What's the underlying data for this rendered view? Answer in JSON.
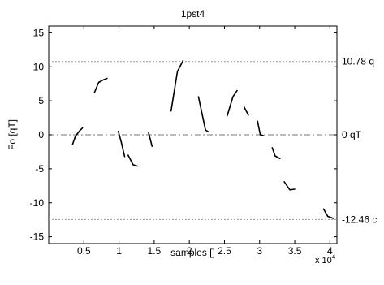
{
  "chart_data": {
    "type": "line",
    "title": "1pst4",
    "xlabel": "samples []",
    "ylabel": "Fo [qT]",
    "x_exponent_label": "x 10",
    "x_exponent_power": "4",
    "xlim": [
      0,
      41000
    ],
    "ylim": [
      -16,
      16
    ],
    "xticks": [
      5000,
      10000,
      15000,
      20000,
      25000,
      30000,
      35000,
      40000
    ],
    "xtick_labels": [
      "0.5",
      "1",
      "1.5",
      "2",
      "2.5",
      "3",
      "3.5",
      "4"
    ],
    "yticks": [
      -15,
      -10,
      -5,
      0,
      5,
      10,
      15
    ],
    "ytick_labels": [
      "-15",
      "-10",
      "-5",
      "0",
      "5",
      "10",
      "15"
    ],
    "grid": false,
    "reference_lines": [
      {
        "y": 10.78,
        "label": "10.78 q",
        "style": "dotted"
      },
      {
        "y": 0,
        "label": "0 qT",
        "style": "dashdot"
      },
      {
        "y": -12.46,
        "label": "-12.46 c",
        "style": "dotted"
      }
    ],
    "segments": [
      [
        [
          3400,
          -1.4
        ],
        [
          3800,
          -0.2
        ],
        [
          4400,
          0.6
        ],
        [
          4800,
          1.0
        ]
      ],
      [
        [
          6500,
          6.2
        ],
        [
          7100,
          7.7
        ],
        [
          7800,
          8.1
        ],
        [
          8300,
          8.3
        ]
      ],
      [
        [
          9900,
          0.5
        ],
        [
          10300,
          -1.0
        ],
        [
          10800,
          -3.2
        ]
      ],
      [
        [
          11300,
          -3.0
        ],
        [
          12000,
          -4.4
        ],
        [
          12600,
          -4.6
        ]
      ],
      [
        [
          14200,
          0.3
        ],
        [
          14700,
          -1.7
        ]
      ],
      [
        [
          17400,
          3.5
        ],
        [
          18300,
          9.3
        ],
        [
          19100,
          10.9
        ]
      ],
      [
        [
          21300,
          5.6
        ],
        [
          22300,
          0.7
        ],
        [
          22800,
          0.4
        ]
      ],
      [
        [
          25400,
          2.8
        ],
        [
          26200,
          5.6
        ],
        [
          26800,
          6.5
        ]
      ],
      [
        [
          27800,
          4.1
        ],
        [
          28400,
          2.9
        ]
      ],
      [
        [
          29700,
          2.0
        ],
        [
          30100,
          0.0
        ],
        [
          30500,
          -0.1
        ]
      ],
      [
        [
          31800,
          -1.9
        ],
        [
          32200,
          -3.1
        ],
        [
          32900,
          -3.5
        ]
      ],
      [
        [
          33500,
          -6.9
        ],
        [
          34300,
          -8.1
        ],
        [
          35000,
          -8.0
        ]
      ],
      [
        [
          39100,
          -10.9
        ],
        [
          39700,
          -12.0
        ],
        [
          40500,
          -12.3
        ]
      ]
    ]
  }
}
